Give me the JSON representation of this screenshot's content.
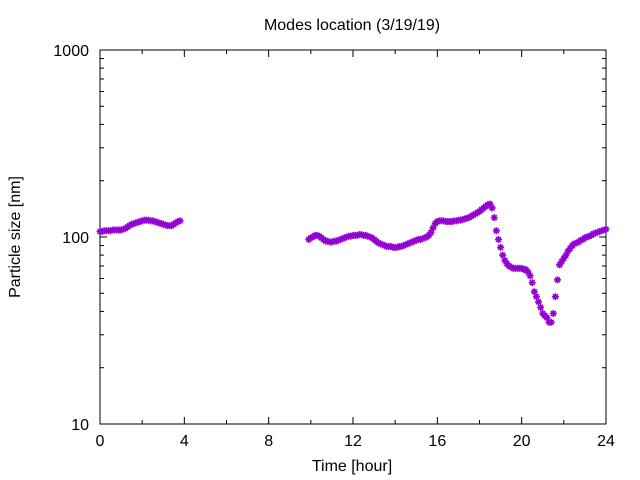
{
  "chart_data": {
    "type": "scatter",
    "title": "Modes location (3/19/19)",
    "xlabel": "Time [hour]",
    "ylabel": "Particle size [nm]",
    "xlim": [
      0,
      24
    ],
    "ylim": [
      10,
      1000
    ],
    "yscale": "log",
    "x_ticks": [
      0,
      4,
      8,
      12,
      16,
      20,
      24
    ],
    "x_tick_labels": [
      "0",
      "4",
      "8",
      "12",
      "16",
      "20",
      "24"
    ],
    "y_ticks": [
      10,
      100,
      1000
    ],
    "y_tick_labels": [
      "10",
      "100",
      "1000"
    ],
    "grid": false,
    "legend": "none",
    "marker_color": "#9400d3",
    "series": [
      {
        "points": [
          [
            0.0,
            107
          ],
          [
            0.1,
            107
          ],
          [
            0.2,
            108
          ],
          [
            0.3,
            108
          ],
          [
            0.4,
            108
          ],
          [
            0.5,
            108
          ],
          [
            0.6,
            109
          ],
          [
            0.7,
            109
          ],
          [
            0.8,
            109
          ],
          [
            0.9,
            109
          ],
          [
            1.0,
            109
          ],
          [
            1.1,
            110
          ],
          [
            1.2,
            111
          ],
          [
            1.3,
            113
          ],
          [
            1.4,
            115
          ],
          [
            1.5,
            117
          ],
          [
            1.6,
            118
          ],
          [
            1.7,
            119
          ],
          [
            1.8,
            120
          ],
          [
            1.9,
            121
          ],
          [
            2.0,
            122
          ],
          [
            2.1,
            123
          ],
          [
            2.2,
            123
          ],
          [
            2.3,
            123
          ],
          [
            2.4,
            122
          ],
          [
            2.5,
            122
          ],
          [
            2.6,
            121
          ],
          [
            2.7,
            120
          ],
          [
            2.8,
            119
          ],
          [
            2.9,
            118
          ],
          [
            3.0,
            117
          ],
          [
            3.1,
            116
          ],
          [
            3.2,
            115
          ],
          [
            3.3,
            115
          ],
          [
            3.4,
            115
          ],
          [
            3.5,
            117
          ],
          [
            3.6,
            119
          ],
          [
            3.7,
            121
          ],
          [
            3.8,
            122
          ],
          [
            9.9,
            97
          ],
          [
            10.0,
            99
          ],
          [
            10.1,
            100
          ],
          [
            10.2,
            102
          ],
          [
            10.3,
            102
          ],
          [
            10.4,
            101
          ],
          [
            10.5,
            99
          ],
          [
            10.6,
            97
          ],
          [
            10.7,
            95
          ],
          [
            10.8,
            95
          ],
          [
            10.9,
            94
          ],
          [
            11.0,
            94
          ],
          [
            11.1,
            95
          ],
          [
            11.2,
            95
          ],
          [
            11.3,
            96
          ],
          [
            11.4,
            97
          ],
          [
            11.5,
            98
          ],
          [
            11.6,
            99
          ],
          [
            11.7,
            100
          ],
          [
            11.8,
            101
          ],
          [
            11.9,
            101
          ],
          [
            12.0,
            102
          ],
          [
            12.1,
            102
          ],
          [
            12.2,
            102
          ],
          [
            12.3,
            103
          ],
          [
            12.4,
            103
          ],
          [
            12.5,
            102
          ],
          [
            12.6,
            102
          ],
          [
            12.7,
            101
          ],
          [
            12.8,
            100
          ],
          [
            12.9,
            99
          ],
          [
            13.0,
            97
          ],
          [
            13.1,
            95
          ],
          [
            13.2,
            93
          ],
          [
            13.3,
            92
          ],
          [
            13.4,
            91
          ],
          [
            13.5,
            90
          ],
          [
            13.6,
            89
          ],
          [
            13.7,
            89
          ],
          [
            13.8,
            89
          ],
          [
            13.9,
            88
          ],
          [
            14.0,
            88
          ],
          [
            14.1,
            88
          ],
          [
            14.2,
            89
          ],
          [
            14.3,
            89
          ],
          [
            14.4,
            90
          ],
          [
            14.5,
            91
          ],
          [
            14.6,
            92
          ],
          [
            14.7,
            93
          ],
          [
            14.8,
            94
          ],
          [
            14.9,
            95
          ],
          [
            15.0,
            96
          ],
          [
            15.1,
            97
          ],
          [
            15.2,
            97
          ],
          [
            15.3,
            98
          ],
          [
            15.4,
            99
          ],
          [
            15.5,
            100
          ],
          [
            15.6,
            102
          ],
          [
            15.7,
            106
          ],
          [
            15.8,
            112
          ],
          [
            15.9,
            118
          ],
          [
            16.0,
            121
          ],
          [
            16.1,
            122
          ],
          [
            16.2,
            122
          ],
          [
            16.3,
            122
          ],
          [
            16.4,
            121
          ],
          [
            16.5,
            121
          ],
          [
            16.6,
            121
          ],
          [
            16.7,
            121
          ],
          [
            16.8,
            122
          ],
          [
            16.9,
            122
          ],
          [
            17.0,
            123
          ],
          [
            17.1,
            123
          ],
          [
            17.2,
            124
          ],
          [
            17.3,
            125
          ],
          [
            17.4,
            126
          ],
          [
            17.5,
            127
          ],
          [
            17.6,
            129
          ],
          [
            17.7,
            131
          ],
          [
            17.8,
            133
          ],
          [
            17.9,
            135
          ],
          [
            18.0,
            137
          ],
          [
            18.1,
            140
          ],
          [
            18.2,
            143
          ],
          [
            18.3,
            146
          ],
          [
            18.4,
            149
          ],
          [
            18.5,
            150
          ],
          [
            18.6,
            143
          ],
          [
            18.7,
            127
          ],
          [
            18.8,
            108
          ],
          [
            18.9,
            97
          ],
          [
            19.0,
            88
          ],
          [
            19.1,
            80
          ],
          [
            19.2,
            75
          ],
          [
            19.3,
            72
          ],
          [
            19.4,
            70
          ],
          [
            19.5,
            69
          ],
          [
            19.6,
            68
          ],
          [
            19.7,
            68
          ],
          [
            19.8,
            68
          ],
          [
            19.9,
            68
          ],
          [
            20.0,
            68
          ],
          [
            20.1,
            67
          ],
          [
            20.2,
            67
          ],
          [
            20.3,
            65
          ],
          [
            20.4,
            62
          ],
          [
            20.5,
            57
          ],
          [
            20.6,
            51
          ],
          [
            20.7,
            48
          ],
          [
            20.8,
            45
          ],
          [
            20.9,
            42
          ],
          [
            21.0,
            39
          ],
          [
            21.1,
            38
          ],
          [
            21.2,
            37
          ],
          [
            21.3,
            35
          ],
          [
            21.4,
            35
          ],
          [
            21.5,
            39
          ],
          [
            21.6,
            48
          ],
          [
            21.7,
            59
          ],
          [
            21.8,
            71
          ],
          [
            21.9,
            74
          ],
          [
            22.0,
            77
          ],
          [
            22.1,
            80
          ],
          [
            22.2,
            84
          ],
          [
            22.3,
            87
          ],
          [
            22.4,
            90
          ],
          [
            22.5,
            92
          ],
          [
            22.6,
            93
          ],
          [
            22.7,
            94
          ],
          [
            22.8,
            96
          ],
          [
            22.9,
            97
          ],
          [
            23.0,
            99
          ],
          [
            23.1,
            100
          ],
          [
            23.2,
            101
          ],
          [
            23.3,
            102
          ],
          [
            23.4,
            104
          ],
          [
            23.5,
            105
          ],
          [
            23.6,
            106
          ],
          [
            23.7,
            107
          ],
          [
            23.8,
            108
          ],
          [
            23.9,
            109
          ],
          [
            24.0,
            110
          ]
        ]
      }
    ]
  }
}
